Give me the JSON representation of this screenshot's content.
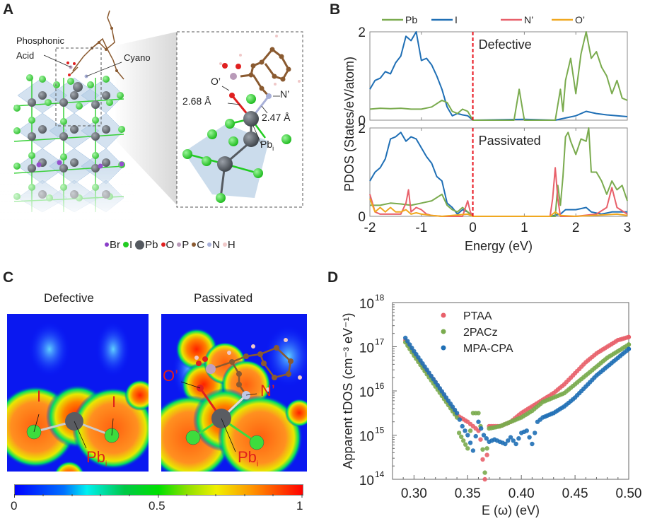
{
  "panels": {
    "A": {
      "label": "A",
      "annotations": {
        "phosphonic": "Phosphonic",
        "acid": "Acid",
        "cyano": "Cyano",
        "o_prime": "O’",
        "n_prime": "N’",
        "dist_o": "2.68 Å",
        "dist_n": "2.47 Å",
        "pb": "Pb",
        "pb_sub": "i"
      },
      "legend": [
        {
          "symbol": "Br",
          "color": "#8a3ec8"
        },
        {
          "symbol": "I",
          "color": "#22cc22"
        },
        {
          "symbol": "Pb",
          "color": "#555a60"
        },
        {
          "symbol": "O",
          "color": "#e02020"
        },
        {
          "symbol": "P",
          "color": "#b89ab8"
        },
        {
          "symbol": "C",
          "color": "#8a5a30"
        },
        {
          "symbol": "N",
          "color": "#a8b0d8"
        },
        {
          "symbol": "H",
          "color": "#f0c8c8"
        }
      ]
    },
    "B": {
      "label": "B"
    },
    "C": {
      "label": "C",
      "titles": [
        "Defective",
        "Passivated"
      ],
      "annotations": {
        "i1": "I",
        "i2": "I",
        "pb": "Pb",
        "pb_sub": "i",
        "o_prime": "O’",
        "n_prime": "N’"
      },
      "colorbar": {
        "min_label": "0",
        "mid_label": "0.5",
        "max_label": "1"
      }
    },
    "D": {
      "label": "D"
    }
  },
  "chart_data": [
    {
      "id": "B",
      "type": "line",
      "title": "",
      "xlabel": "Energy (eV)",
      "ylabel": "PDOS (States/eV/atom)",
      "xlim": [
        -2,
        3
      ],
      "xticks": [
        "-2",
        "-1",
        "0",
        "1",
        "2",
        "3"
      ],
      "legend_placement": "top",
      "legend": [
        {
          "name": "Pb",
          "color": "#7aab4e"
        },
        {
          "name": "I",
          "color": "#1f6fb5"
        },
        {
          "name": "N’",
          "color": "#e8606a"
        },
        {
          "name": "O’",
          "color": "#f0a820"
        }
      ],
      "fermi_level": 0,
      "subplots": [
        {
          "name": "Defective",
          "ylim": [
            0,
            2
          ],
          "yticks": [
            "0",
            "2"
          ],
          "series": [
            {
              "name": "I",
              "x": [
                -2,
                -1.9,
                -1.8,
                -1.7,
                -1.6,
                -1.5,
                -1.4,
                -1.3,
                -1.2,
                -1.1,
                -1.0,
                -0.9,
                -0.8,
                -0.7,
                -0.6,
                -0.5,
                -0.4,
                -0.3,
                -0.2,
                -0.1,
                0,
                1,
                1.6,
                1.8,
                2.0,
                2.2,
                2.4,
                2.6,
                2.8,
                3.0
              ],
              "y": [
                0.7,
                0.9,
                0.95,
                1.1,
                1.05,
                1.3,
                1.45,
                1.9,
                1.8,
                2.05,
                1.35,
                1.4,
                1.25,
                1.0,
                0.7,
                0.3,
                0.1,
                0.15,
                0.12,
                0.1,
                0,
                0.02,
                0.0,
                0.05,
                0.1,
                0.2,
                0.15,
                0.12,
                0.1,
                0.08
              ]
            },
            {
              "name": "Pb",
              "x": [
                -2,
                -1.8,
                -1.6,
                -1.4,
                -1.2,
                -1.0,
                -0.8,
                -0.6,
                -0.5,
                -0.4,
                -0.3,
                -0.2,
                -0.1,
                0,
                0.8,
                0.9,
                1.0,
                1.6,
                1.7,
                1.75,
                1.8,
                1.9,
                2.0,
                2.1,
                2.2,
                2.3,
                2.4,
                2.5,
                2.6,
                2.7,
                2.8,
                2.9,
                3.0
              ],
              "y": [
                0.25,
                0.27,
                0.26,
                0.27,
                0.25,
                0.25,
                0.3,
                0.45,
                0.4,
                0.2,
                0.15,
                0.25,
                0.2,
                0,
                0,
                0.7,
                0,
                0,
                0.7,
                0.2,
                0.9,
                1.4,
                0.6,
                1.5,
                2.0,
                1.4,
                1.55,
                1.2,
                1.0,
                0.6,
                0.9,
                0.5,
                0.45
              ]
            }
          ]
        },
        {
          "name": "Passivated",
          "ylim": [
            0,
            2
          ],
          "yticks": [
            "0",
            "2"
          ],
          "series": [
            {
              "name": "I",
              "x": [
                -2,
                -1.9,
                -1.8,
                -1.7,
                -1.6,
                -1.5,
                -1.4,
                -1.3,
                -1.2,
                -1.1,
                -1.0,
                -0.9,
                -0.8,
                -0.7,
                -0.6,
                -0.5,
                -0.4,
                -0.3,
                -0.2,
                -0.1,
                0,
                1.5,
                1.7,
                1.8,
                2.0,
                2.2,
                2.3,
                2.5,
                2.7,
                3.0
              ],
              "y": [
                0.8,
                1.0,
                1.1,
                1.3,
                1.75,
                1.8,
                1.9,
                1.7,
                1.8,
                1.75,
                1.55,
                1.35,
                1.2,
                0.9,
                0.8,
                0.3,
                0.2,
                0.05,
                0.15,
                0.1,
                0,
                0,
                0.05,
                0.15,
                0.15,
                0.2,
                0.1,
                0.05,
                0.1,
                0.1
              ]
            },
            {
              "name": "Pb",
              "x": [
                -2,
                -1.8,
                -1.6,
                -1.4,
                -1.2,
                -1.0,
                -0.8,
                -0.6,
                -0.5,
                -0.4,
                -0.3,
                -0.2,
                -0.1,
                0,
                1.6,
                1.65,
                1.7,
                1.75,
                1.8,
                1.85,
                1.9,
                2.0,
                2.1,
                2.2,
                2.25,
                2.3,
                2.4,
                2.5,
                2.6,
                2.7,
                2.8,
                2.9,
                3.0
              ],
              "y": [
                0.25,
                0.25,
                0.3,
                0.28,
                0.25,
                0.3,
                0.35,
                0.5,
                0.25,
                0.15,
                0.1,
                0.2,
                0.1,
                0,
                0,
                0.7,
                0.25,
                0.9,
                1.8,
                1.9,
                1.7,
                1.4,
                1.75,
                1.7,
                2.0,
                1.0,
                1.0,
                0.8,
                0.5,
                0.8,
                0.6,
                0.7,
                0.35
              ]
            },
            {
              "name": "N’",
              "x": [
                -2,
                -1.9,
                -1.8,
                -1.6,
                -1.4,
                -1.3,
                -1.25,
                -1.2,
                -1.1,
                -1.0,
                -0.9,
                -0.8,
                -0.6,
                -0.2,
                -0.1,
                -0.05,
                0,
                1.5,
                1.55,
                1.6,
                1.65,
                1.7,
                2.0,
                2.4,
                2.6,
                2.7,
                2.8,
                3.0
              ],
              "y": [
                0.5,
                0.1,
                0.05,
                0.05,
                0.05,
                0.3,
                0.6,
                0.1,
                0.2,
                0.15,
                0.05,
                0.02,
                0,
                0,
                0.35,
                0.1,
                0,
                0,
                0.4,
                1.1,
                0.4,
                0,
                0,
                0.05,
                0.2,
                0.65,
                0.2,
                0.05
              ]
            },
            {
              "name": "O’",
              "x": [
                -2,
                -1.9,
                -1.8,
                -1.7,
                -1.6,
                -1.5,
                -1.4,
                -1.3,
                -1.2,
                -1.1,
                -1.0,
                -0.8,
                -0.6,
                -0.1,
                0,
                1.5,
                1.6,
                1.7,
                2.0,
                2.5,
                2.8,
                3.0
              ],
              "y": [
                0.4,
                0.1,
                0.2,
                0.1,
                0.2,
                0.1,
                0.1,
                0.15,
                0.05,
                0.08,
                0.05,
                0.02,
                0,
                0.05,
                0,
                0,
                0.1,
                0.02,
                0,
                0.03,
                0.05,
                0.02
              ]
            }
          ]
        }
      ]
    },
    {
      "id": "D",
      "type": "scatter",
      "title": "",
      "xlabel": "E (ω) (eV)",
      "ylabel": "Apparent tDOS (cm⁻³ eV⁻¹)",
      "xlim": [
        0.28,
        0.5
      ],
      "ylim_log10": [
        14,
        18
      ],
      "yscale": "log",
      "xticks": [
        "0.30",
        "0.35",
        "0.40",
        "0.45",
        "0.50"
      ],
      "yticks": [
        {
          "base": "10",
          "exp": "14"
        },
        {
          "base": "10",
          "exp": "15"
        },
        {
          "base": "10",
          "exp": "16"
        },
        {
          "base": "10",
          "exp": "17"
        },
        {
          "base": "10",
          "exp": "18"
        }
      ],
      "legend_placement": "top-left",
      "series": [
        {
          "name": "PTAA",
          "color": "#e8606a",
          "points_log10": [
            [
              0.292,
              17.15
            ],
            [
              0.3,
              16.85
            ],
            [
              0.31,
              16.5
            ],
            [
              0.32,
              16.2
            ],
            [
              0.33,
              15.8
            ],
            [
              0.34,
              15.45
            ],
            [
              0.35,
              15.3
            ],
            [
              0.355,
              15.2
            ],
            [
              0.36,
              15.1
            ],
            [
              0.362,
              14.9
            ],
            [
              0.366,
              14.0
            ],
            [
              0.368,
              14.55
            ],
            [
              0.37,
              15.2
            ],
            [
              0.38,
              15.2
            ],
            [
              0.39,
              15.3
            ],
            [
              0.4,
              15.5
            ],
            [
              0.41,
              15.65
            ],
            [
              0.42,
              15.8
            ],
            [
              0.43,
              15.95
            ],
            [
              0.44,
              16.15
            ],
            [
              0.45,
              16.4
            ],
            [
              0.46,
              16.65
            ],
            [
              0.47,
              16.85
            ],
            [
              0.48,
              17.0
            ],
            [
              0.49,
              17.15
            ],
            [
              0.5,
              17.22
            ]
          ]
        },
        {
          "name": "2PACz",
          "color": "#7aab4e",
          "points_log10": [
            [
              0.292,
              17.1
            ],
            [
              0.3,
              16.8
            ],
            [
              0.31,
              16.45
            ],
            [
              0.32,
              16.1
            ],
            [
              0.33,
              15.75
            ],
            [
              0.34,
              15.4
            ],
            [
              0.342,
              15.05
            ],
            [
              0.35,
              14.7
            ],
            [
              0.355,
              15.5
            ],
            [
              0.36,
              15.5
            ],
            [
              0.362,
              15.2
            ],
            [
              0.366,
              14.15
            ],
            [
              0.368,
              14.7
            ],
            [
              0.37,
              15.15
            ],
            [
              0.38,
              15.2
            ],
            [
              0.39,
              15.3
            ],
            [
              0.4,
              15.4
            ],
            [
              0.41,
              15.55
            ],
            [
              0.42,
              15.75
            ],
            [
              0.43,
              15.85
            ],
            [
              0.44,
              15.95
            ],
            [
              0.45,
              16.15
            ],
            [
              0.46,
              16.35
            ],
            [
              0.47,
              16.55
            ],
            [
              0.48,
              16.75
            ],
            [
              0.49,
              16.9
            ],
            [
              0.5,
              17.05
            ]
          ]
        },
        {
          "name": "MPA-CPA",
          "color": "#1f6fb5",
          "points_log10": [
            [
              0.292,
              17.2
            ],
            [
              0.3,
              16.9
            ],
            [
              0.31,
              16.55
            ],
            [
              0.32,
              16.2
            ],
            [
              0.33,
              15.85
            ],
            [
              0.34,
              15.5
            ],
            [
              0.345,
              15.2
            ],
            [
              0.35,
              15.0
            ],
            [
              0.355,
              14.65
            ],
            [
              0.36,
              15.3
            ],
            [
              0.365,
              15.0
            ],
            [
              0.37,
              14.85
            ],
            [
              0.375,
              14.9
            ],
            [
              0.38,
              14.85
            ],
            [
              0.385,
              14.8
            ],
            [
              0.39,
              14.95
            ],
            [
              0.395,
              14.8
            ],
            [
              0.4,
              15.05
            ],
            [
              0.405,
              15.1
            ],
            [
              0.41,
              14.8
            ],
            [
              0.415,
              15.3
            ],
            [
              0.42,
              15.4
            ],
            [
              0.43,
              15.5
            ],
            [
              0.44,
              15.65
            ],
            [
              0.45,
              15.85
            ],
            [
              0.46,
              16.1
            ],
            [
              0.47,
              16.35
            ],
            [
              0.48,
              16.55
            ],
            [
              0.49,
              16.75
            ],
            [
              0.5,
              16.95
            ]
          ]
        }
      ]
    }
  ]
}
